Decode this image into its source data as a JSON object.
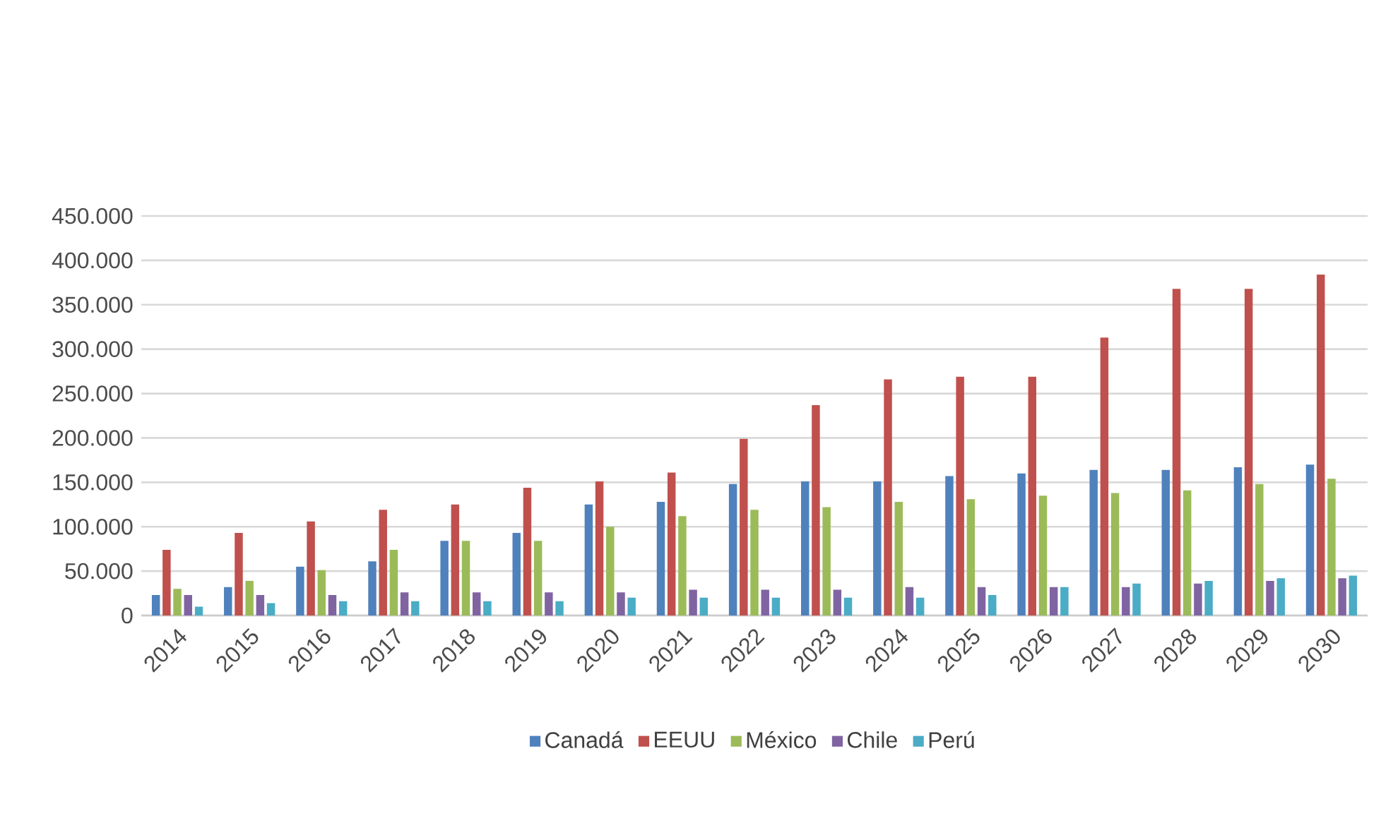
{
  "chart_data": {
    "type": "bar",
    "categories": [
      "2014",
      "2015",
      "2016",
      "2017",
      "2018",
      "2019",
      "2020",
      "2021",
      "2022",
      "2023",
      "2024",
      "2025",
      "2026",
      "2027",
      "2028",
      "2029",
      "2030"
    ],
    "series": [
      {
        "name": "Canadá",
        "color": "#4f81bd",
        "values": [
          23000,
          32000,
          55000,
          61000,
          84000,
          93000,
          125000,
          128000,
          148000,
          151000,
          151000,
          157000,
          160000,
          164000,
          164000,
          167000,
          170000
        ]
      },
      {
        "name": "EEUU",
        "color": "#c0504d",
        "values": [
          74000,
          93000,
          106000,
          119000,
          125000,
          144000,
          151000,
          161000,
          199000,
          237000,
          266000,
          269000,
          269000,
          313000,
          368000,
          368000,
          384000
        ]
      },
      {
        "name": "México",
        "color": "#9bbb59",
        "values": [
          30000,
          39000,
          51000,
          74000,
          84000,
          84000,
          100000,
          112000,
          119000,
          122000,
          128000,
          131000,
          135000,
          138000,
          141000,
          148000,
          154000
        ]
      },
      {
        "name": "Chile",
        "color": "#8064a2",
        "values": [
          23000,
          23000,
          23000,
          26000,
          26000,
          26000,
          26000,
          29000,
          29000,
          29000,
          32000,
          32000,
          32000,
          32000,
          36000,
          39000,
          42000
        ]
      },
      {
        "name": "Perú",
        "color": "#4bacc6",
        "values": [
          10000,
          14000,
          16000,
          16000,
          16000,
          16000,
          20000,
          20000,
          20000,
          20000,
          20000,
          23000,
          32000,
          36000,
          39000,
          42000,
          45000
        ]
      }
    ],
    "ylim": [
      0,
      450000
    ],
    "yticks": [
      {
        "value": 0,
        "label": "0"
      },
      {
        "value": 50000,
        "label": "50.000"
      },
      {
        "value": 100000,
        "label": "100.000"
      },
      {
        "value": 150000,
        "label": "150.000"
      },
      {
        "value": 200000,
        "label": "200.000"
      },
      {
        "value": 250000,
        "label": "250.000"
      },
      {
        "value": 300000,
        "label": "300.000"
      },
      {
        "value": 350000,
        "label": "350.000"
      },
      {
        "value": 400000,
        "label": "400.000"
      },
      {
        "value": 450000,
        "label": "450.000"
      }
    ],
    "grid": "y",
    "legend": "bottom"
  }
}
